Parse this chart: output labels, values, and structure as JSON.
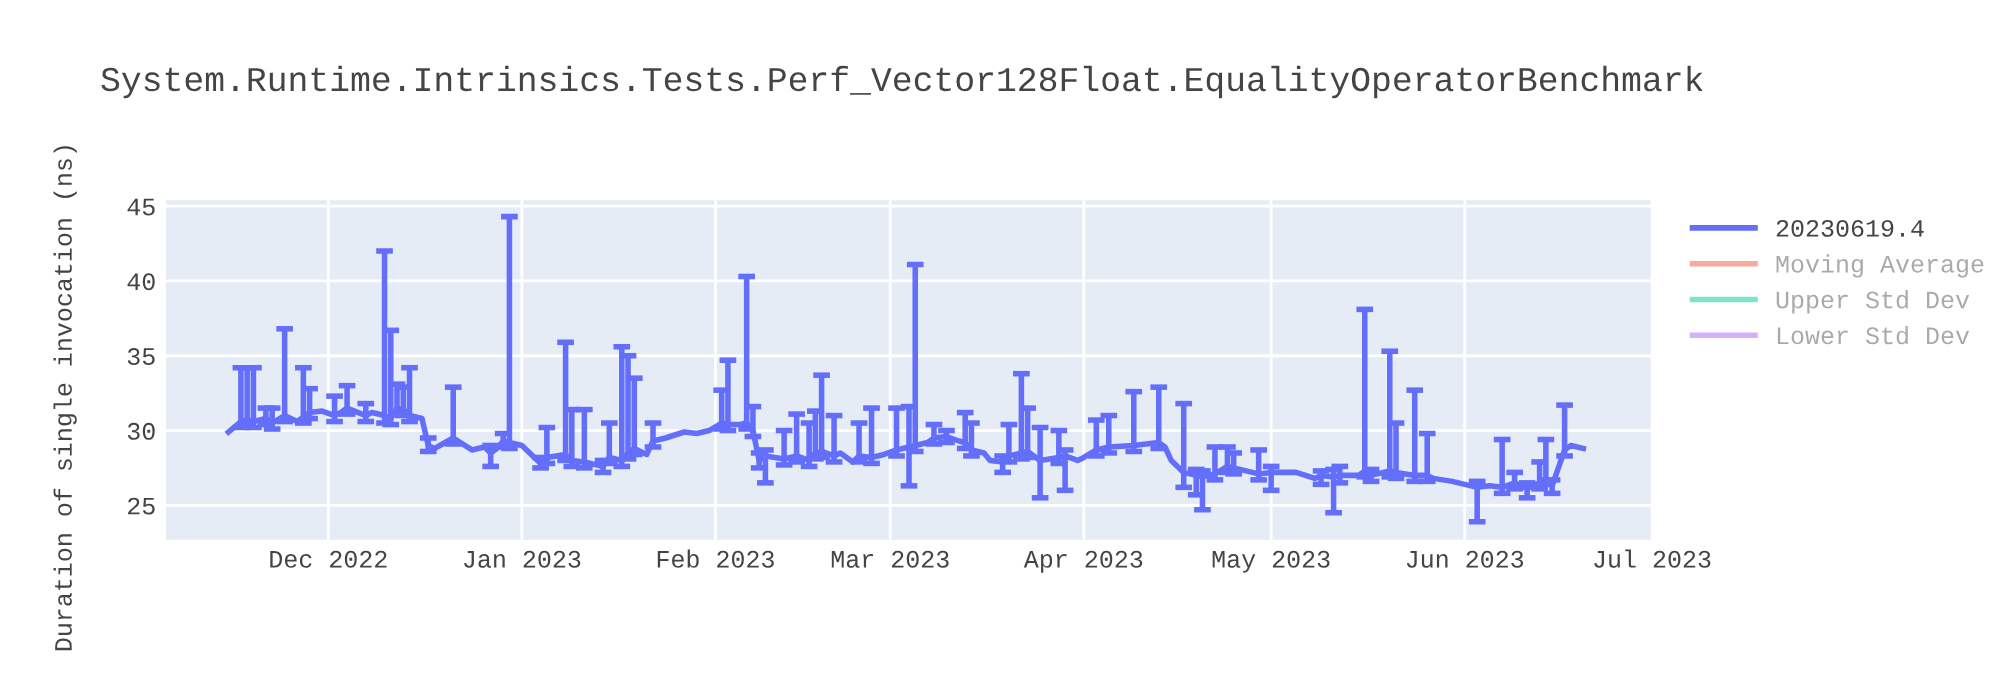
{
  "chart_data": {
    "type": "line",
    "title": "System.Runtime.Intrinsics.Tests.Perf_Vector128Float.EqualityOperatorBenchmark",
    "ylabel": "Duration of single invocation (ns)",
    "xlim": [
      "2022-11-05",
      "2023-07-01"
    ],
    "xticks": [
      {
        "value": "2022-12-01",
        "label": "Dec 2022"
      },
      {
        "value": "2023-01-01",
        "label": "Jan 2023"
      },
      {
        "value": "2023-02-01",
        "label": "Feb 2023"
      },
      {
        "value": "2023-03-01",
        "label": "Mar 2023"
      },
      {
        "value": "2023-04-01",
        "label": "Apr 2023"
      },
      {
        "value": "2023-05-01",
        "label": "May 2023"
      },
      {
        "value": "2023-06-01",
        "label": "Jun 2023"
      },
      {
        "value": "2023-07-01",
        "label": "Jul 2023"
      }
    ],
    "ylim": [
      22.7,
      45.4
    ],
    "yticks": [
      25,
      30,
      35,
      40,
      45
    ],
    "grid": true,
    "legend": "top right",
    "marker": "none",
    "line_style": "solid",
    "series": [
      {
        "name": "20230619.4",
        "color": "#636efa",
        "x": [
          "2022-11-15",
          "2022-11-17",
          "2022-11-18",
          "2022-11-19",
          "2022-11-21",
          "2022-11-22",
          "2022-11-24",
          "2022-11-26",
          "2022-11-27",
          "2022-11-28",
          "2022-11-30",
          "2022-12-02",
          "2022-12-03",
          "2022-12-04",
          "2022-12-07",
          "2022-12-08",
          "2022-12-10",
          "2022-12-11",
          "2022-12-12",
          "2022-12-13",
          "2022-12-14",
          "2022-12-16",
          "2022-12-17",
          "2022-12-18",
          "2022-12-21",
          "2022-12-24",
          "2022-12-26",
          "2022-12-27",
          "2022-12-28",
          "2022-12-29",
          "2022-12-30",
          "2023-01-01",
          "2023-01-02",
          "2023-01-04",
          "2023-01-05",
          "2023-01-08",
          "2023-01-09",
          "2023-01-11",
          "2023-01-12",
          "2023-01-14",
          "2023-01-15",
          "2023-01-17",
          "2023-01-18",
          "2023-01-19",
          "2023-01-21",
          "2023-01-22",
          "2023-01-24",
          "2023-01-27",
          "2023-01-29",
          "2023-01-31",
          "2023-02-02",
          "2023-02-03",
          "2023-02-05",
          "2023-02-06",
          "2023-02-07",
          "2023-02-08",
          "2023-02-09",
          "2023-02-12",
          "2023-02-14",
          "2023-02-16",
          "2023-02-17",
          "2023-02-18",
          "2023-02-20",
          "2023-02-21",
          "2023-02-23",
          "2023-02-24",
          "2023-02-26",
          "2023-02-28",
          "2023-03-02",
          "2023-03-04",
          "2023-03-05",
          "2023-03-07",
          "2023-03-08",
          "2023-03-10",
          "2023-03-12",
          "2023-03-13",
          "2023-03-14",
          "2023-03-16",
          "2023-03-17",
          "2023-03-19",
          "2023-03-20",
          "2023-03-22",
          "2023-03-23",
          "2023-03-25",
          "2023-03-28",
          "2023-03-29",
          "2023-03-31",
          "2023-04-01",
          "2023-04-03",
          "2023-04-05",
          "2023-04-09",
          "2023-04-13",
          "2023-04-14",
          "2023-04-15",
          "2023-04-17",
          "2023-04-19",
          "2023-04-20",
          "2023-04-22",
          "2023-04-24",
          "2023-04-25",
          "2023-04-27",
          "2023-04-29",
          "2023-05-01",
          "2023-05-03",
          "2023-05-05",
          "2023-05-08",
          "2023-05-09",
          "2023-05-11",
          "2023-05-12",
          "2023-05-15",
          "2023-05-16",
          "2023-05-17",
          "2023-05-20",
          "2023-05-21",
          "2023-05-24",
          "2023-05-26",
          "2023-05-27",
          "2023-05-30",
          "2023-06-02",
          "2023-06-03",
          "2023-06-05",
          "2023-06-07",
          "2023-06-09",
          "2023-06-11",
          "2023-06-13",
          "2023-06-14",
          "2023-06-15",
          "2023-06-17",
          "2023-06-18",
          "2023-06-20"
        ],
        "values": [
          29.9,
          30.6,
          30.7,
          30.6,
          30.8,
          30.5,
          31.0,
          30.6,
          30.9,
          31.2,
          31.3,
          31.0,
          31.2,
          31.5,
          31.0,
          31.2,
          31.0,
          30.8,
          31.5,
          31.4,
          31.0,
          30.8,
          29.0,
          28.8,
          29.5,
          28.7,
          28.9,
          28.5,
          28.8,
          29.3,
          29.2,
          29.0,
          28.6,
          27.8,
          28.2,
          28.4,
          28.0,
          27.9,
          27.8,
          27.6,
          28.2,
          28.0,
          28.5,
          28.8,
          28.4,
          29.3,
          29.5,
          29.9,
          29.8,
          30.0,
          30.5,
          30.4,
          30.4,
          30.5,
          30.0,
          28.0,
          28.3,
          28.1,
          28.3,
          28.0,
          28.5,
          28.6,
          28.3,
          28.5,
          27.9,
          28.3,
          28.2,
          28.4,
          28.7,
          28.9,
          29.0,
          29.2,
          29.5,
          29.6,
          29.3,
          29.2,
          28.7,
          28.5,
          28.0,
          27.9,
          28.3,
          28.5,
          28.6,
          28.0,
          28.2,
          28.3,
          28.0,
          28.2,
          28.7,
          28.9,
          29.0,
          29.2,
          28.9,
          28.0,
          27.2,
          27.0,
          26.9,
          27.1,
          27.6,
          27.5,
          27.3,
          27.1,
          27.2,
          27.2,
          27.2,
          26.8,
          27.0,
          26.9,
          27.0,
          27.0,
          27.3,
          27.0,
          27.3,
          27.2,
          27.0,
          27.0,
          26.8,
          26.6,
          26.3,
          26.2,
          26.3,
          26.2,
          26.5,
          26.1,
          26.5,
          26.8,
          26.3,
          28.7,
          29.0,
          28.8
        ],
        "errors": [
          null,
          [
            30.2,
            34.2
          ],
          [
            30.3,
            34.2
          ],
          [
            30.2,
            34.2
          ],
          [
            30.4,
            31.5
          ],
          [
            30.1,
            31.5
          ],
          [
            30.6,
            36.8
          ],
          null,
          [
            30.5,
            34.2
          ],
          [
            30.8,
            32.8
          ],
          null,
          [
            30.6,
            32.3
          ],
          null,
          [
            31.1,
            33.0
          ],
          [
            30.6,
            31.8
          ],
          null,
          [
            30.5,
            42.0
          ],
          [
            30.4,
            36.7
          ],
          [
            31.1,
            33.1
          ],
          [
            31.0,
            32.9
          ],
          [
            30.6,
            34.2
          ],
          null,
          [
            28.6,
            29.5
          ],
          null,
          [
            29.1,
            32.9
          ],
          null,
          null,
          [
            27.6,
            29.0
          ],
          null,
          [
            28.9,
            29.8
          ],
          [
            28.8,
            44.3
          ],
          null,
          null,
          [
            27.5,
            28.2
          ],
          [
            27.8,
            30.2
          ],
          [
            28.0,
            35.9
          ],
          [
            27.6,
            31.4
          ],
          [
            27.5,
            31.4
          ],
          null,
          [
            27.2,
            28.0
          ],
          [
            27.8,
            30.5
          ],
          [
            27.6,
            35.6
          ],
          [
            28.1,
            35.0
          ],
          [
            28.4,
            33.5
          ],
          null,
          [
            28.9,
            30.5
          ],
          null,
          null,
          null,
          null,
          [
            30.1,
            32.7
          ],
          [
            30.0,
            34.7
          ],
          null,
          [
            30.1,
            40.3
          ],
          [
            29.6,
            31.6
          ],
          [
            27.5,
            28.5
          ],
          [
            26.5,
            28.7
          ],
          [
            27.7,
            30.0
          ],
          [
            27.9,
            31.1
          ],
          [
            27.6,
            30.5
          ],
          [
            28.1,
            31.3
          ],
          [
            28.2,
            33.7
          ],
          [
            27.9,
            31.0
          ],
          null,
          null,
          [
            27.9,
            30.5
          ],
          [
            27.8,
            31.5
          ],
          null,
          [
            28.3,
            31.5
          ],
          [
            26.3,
            31.6
          ],
          [
            28.6,
            41.1
          ],
          null,
          [
            29.1,
            30.4
          ],
          [
            29.2,
            30.0
          ],
          null,
          [
            28.8,
            31.2
          ],
          [
            28.3,
            30.5
          ],
          null,
          null,
          [
            27.2,
            28.3
          ],
          [
            27.9,
            30.4
          ],
          [
            28.1,
            33.8
          ],
          [
            28.2,
            31.5
          ],
          [
            25.5,
            30.2
          ],
          [
            27.8,
            30.0
          ],
          [
            26.0,
            28.7
          ],
          null,
          null,
          [
            28.3,
            30.7
          ],
          [
            28.5,
            31.0
          ],
          [
            28.6,
            32.6
          ],
          [
            28.8,
            32.9
          ],
          null,
          null,
          [
            26.2,
            31.8
          ],
          [
            25.7,
            27.4
          ],
          [
            24.7,
            27.3
          ],
          [
            26.7,
            28.9
          ],
          [
            27.2,
            28.9
          ],
          [
            27.1,
            28.5
          ],
          null,
          [
            26.7,
            28.7
          ],
          [
            26.0,
            27.6
          ],
          null,
          null,
          null,
          [
            26.4,
            27.3
          ],
          [
            24.5,
            27.4
          ],
          [
            26.5,
            27.6
          ],
          null,
          [
            26.9,
            38.1
          ],
          [
            26.6,
            27.4
          ],
          [
            26.9,
            35.3
          ],
          [
            26.8,
            30.5
          ],
          [
            26.6,
            32.7
          ],
          [
            26.6,
            29.8
          ],
          null,
          null,
          null,
          [
            23.9,
            26.6
          ],
          null,
          [
            25.8,
            29.4
          ],
          [
            26.1,
            27.2
          ],
          [
            25.5,
            26.5
          ],
          [
            26.1,
            27.9
          ],
          [
            26.4,
            29.4
          ],
          [
            25.8,
            26.7
          ],
          [
            28.3,
            31.7
          ],
          null,
          null
        ]
      },
      {
        "name": "Moving Average",
        "color": "#ef553b"
      },
      {
        "name": "Upper Std Dev",
        "color": "#00cc96"
      },
      {
        "name": "Lower Std Dev",
        "color": "#ab63fa"
      }
    ]
  }
}
